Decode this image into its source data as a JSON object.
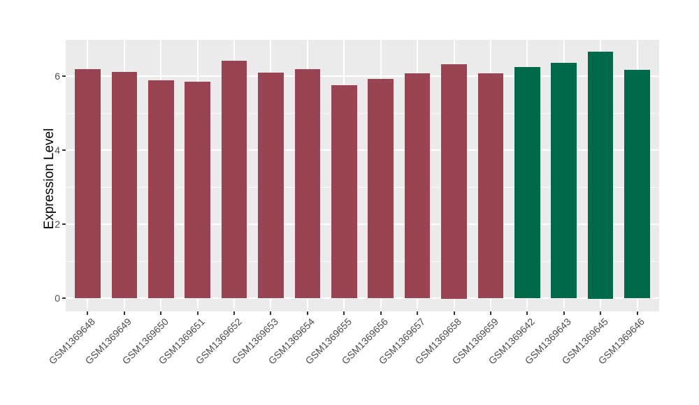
{
  "figure": {
    "background_color": "#FFFFFF",
    "panel_background_color": "#EBEBEB",
    "gridline_color": "#FFFFFF",
    "tick_mark_color": "#333333",
    "tick_label_color": "#4D4D4D",
    "axis_title_color": "#000000"
  },
  "chart_data": {
    "type": "bar",
    "title": "",
    "xlabel": "",
    "ylabel": "Expression Level",
    "categories": [
      "GSM1369648",
      "GSM1369649",
      "GSM1369650",
      "GSM1369651",
      "GSM1369652",
      "GSM1369653",
      "GSM1369654",
      "GSM1369655",
      "GSM1369656",
      "GSM1369657",
      "GSM1369658",
      "GSM1369659",
      "GSM1369642",
      "GSM1369643",
      "GSM1369645",
      "GSM1369646"
    ],
    "values": [
      6.2,
      6.12,
      5.89,
      5.85,
      6.42,
      6.11,
      6.2,
      5.76,
      5.93,
      6.08,
      6.33,
      6.08,
      6.25,
      6.36,
      6.67,
      6.18
    ],
    "bar_colors": [
      "#9A4352",
      "#9A4352",
      "#9A4352",
      "#9A4352",
      "#9A4352",
      "#9A4352",
      "#9A4352",
      "#9A4352",
      "#9A4352",
      "#9A4352",
      "#9A4352",
      "#9A4352",
      "#00694A",
      "#00694A",
      "#00694A",
      "#00694A"
    ],
    "ytick_values": [
      0,
      2,
      4,
      6
    ],
    "ytick_labels": [
      "0",
      "2",
      "4",
      "6"
    ],
    "yminor_values": [
      1,
      3,
      5
    ],
    "ylim": [
      -0.35,
      6.99
    ],
    "grid": "major+minor",
    "legend_position": "none",
    "bar_width_ratio": 0.7
  }
}
